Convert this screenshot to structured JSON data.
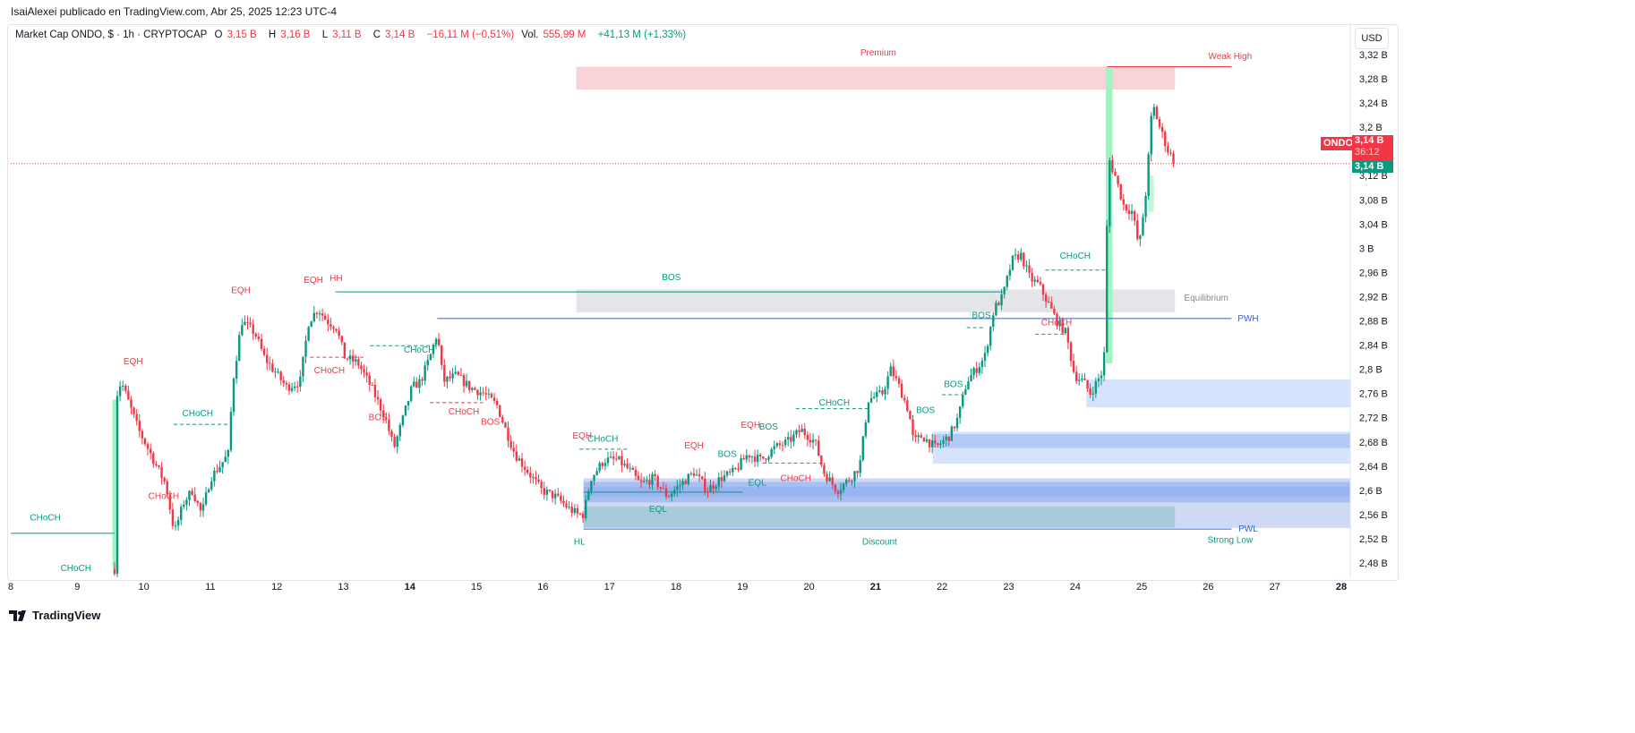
{
  "publisher_line": "IsaiAlexei publicado en TradingView.com, Abr 25, 2025 12:23 UTC-4",
  "legend": {
    "symbol": "Market Cap ONDO, $ · 1h · CRYPTOCAP",
    "o_label": "O",
    "o": "3,15 B",
    "h_label": "H",
    "h": "3,16 B",
    "l_label": "L",
    "l": "3,11 B",
    "c_label": "C",
    "c": "3,14 B",
    "change": "−16,11 M (−0,51%)",
    "vol_label": "Vol.",
    "vol": "555,99 M",
    "vol_change": "+41,13 M (+1,33%)"
  },
  "currency_button": "USD",
  "price_tags": {
    "symbol": "ONDO",
    "price": "3,14 B",
    "countdown": "36:12",
    "last": "3,14 B"
  },
  "footer_logo": "TradingView",
  "colors": {
    "up": "#089981",
    "down": "#f23645",
    "blue": "#2962ff"
  },
  "chart_data": {
    "type": "candlestick",
    "title": "Market Cap ONDO, $ · 1h · CRYPTOCAP",
    "xlim": [
      8,
      28
    ],
    "ylim": [
      2.46,
      3.34
    ],
    "x_ticks": [
      {
        "v": 8,
        "t": "8"
      },
      {
        "v": 9,
        "t": "9"
      },
      {
        "v": 10,
        "t": "10"
      },
      {
        "v": 11,
        "t": "11"
      },
      {
        "v": 12,
        "t": "12"
      },
      {
        "v": 13,
        "t": "13"
      },
      {
        "v": 14,
        "t": "14"
      },
      {
        "v": 15,
        "t": "15"
      },
      {
        "v": 16,
        "t": "16"
      },
      {
        "v": 17,
        "t": "17"
      },
      {
        "v": 18,
        "t": "18"
      },
      {
        "v": 19,
        "t": "19"
      },
      {
        "v": 20,
        "t": "20"
      },
      {
        "v": 21,
        "t": "21"
      },
      {
        "v": 22,
        "t": "22"
      },
      {
        "v": 23,
        "t": "23"
      },
      {
        "v": 24,
        "t": "24"
      },
      {
        "v": 25,
        "t": "25"
      },
      {
        "v": 26,
        "t": "26"
      },
      {
        "v": 27,
        "t": "27"
      },
      {
        "v": 28,
        "t": "28"
      }
    ],
    "y_ticks": [
      {
        "v": 3.32,
        "t": "3,32 B"
      },
      {
        "v": 3.28,
        "t": "3,28 B"
      },
      {
        "v": 3.24,
        "t": "3,24 B"
      },
      {
        "v": 3.2,
        "t": "3,2 B"
      },
      {
        "v": 3.12,
        "t": "3,12 B"
      },
      {
        "v": 3.08,
        "t": "3,08 B"
      },
      {
        "v": 3.04,
        "t": "3,04 B"
      },
      {
        "v": 3.0,
        "t": "3 B"
      },
      {
        "v": 2.96,
        "t": "2,96 B"
      },
      {
        "v": 2.92,
        "t": "2,92 B"
      },
      {
        "v": 2.88,
        "t": "2,88 B"
      },
      {
        "v": 2.84,
        "t": "2,84 B"
      },
      {
        "v": 2.8,
        "t": "2,8 B"
      },
      {
        "v": 2.76,
        "t": "2,76 B"
      },
      {
        "v": 2.72,
        "t": "2,72 B"
      },
      {
        "v": 2.68,
        "t": "2,68 B"
      },
      {
        "v": 2.64,
        "t": "2,64 B"
      },
      {
        "v": 2.6,
        "t": "2,6 B"
      },
      {
        "v": 2.56,
        "t": "2,56 B"
      },
      {
        "v": 2.52,
        "t": "2,52 B"
      },
      {
        "v": 2.48,
        "t": "2,48 B"
      }
    ],
    "price_path": [
      [
        9.56,
        2.47
      ],
      [
        9.57,
        2.75
      ],
      [
        9.66,
        2.78
      ],
      [
        9.79,
        2.74
      ],
      [
        9.92,
        2.7
      ],
      [
        10.06,
        2.67
      ],
      [
        10.19,
        2.64
      ],
      [
        10.33,
        2.61
      ],
      [
        10.46,
        2.53
      ],
      [
        10.6,
        2.58
      ],
      [
        10.73,
        2.6
      ],
      [
        10.87,
        2.56
      ],
      [
        11.0,
        2.62
      ],
      [
        11.14,
        2.64
      ],
      [
        11.27,
        2.66
      ],
      [
        11.34,
        2.78
      ],
      [
        11.47,
        2.88
      ],
      [
        11.67,
        2.86
      ],
      [
        11.81,
        2.82
      ],
      [
        11.94,
        2.8
      ],
      [
        12.15,
        2.77
      ],
      [
        12.35,
        2.78
      ],
      [
        12.48,
        2.88
      ],
      [
        12.62,
        2.9
      ],
      [
        12.75,
        2.88
      ],
      [
        12.89,
        2.87
      ],
      [
        13.02,
        2.82
      ],
      [
        13.22,
        2.81
      ],
      [
        13.42,
        2.77
      ],
      [
        13.63,
        2.72
      ],
      [
        13.76,
        2.67
      ],
      [
        13.9,
        2.72
      ],
      [
        14.03,
        2.77
      ],
      [
        14.16,
        2.78
      ],
      [
        14.3,
        2.82
      ],
      [
        14.41,
        2.86
      ],
      [
        14.5,
        2.78
      ],
      [
        14.7,
        2.79
      ],
      [
        14.9,
        2.77
      ],
      [
        15.11,
        2.76
      ],
      [
        15.31,
        2.74
      ],
      [
        15.44,
        2.7
      ],
      [
        15.58,
        2.66
      ],
      [
        15.78,
        2.63
      ],
      [
        15.98,
        2.6
      ],
      [
        16.18,
        2.59
      ],
      [
        16.39,
        2.57
      ],
      [
        16.52,
        2.56
      ],
      [
        16.61,
        2.56
      ],
      [
        16.72,
        2.62
      ],
      [
        16.92,
        2.65
      ],
      [
        17.13,
        2.65
      ],
      [
        17.33,
        2.63
      ],
      [
        17.46,
        2.61
      ],
      [
        17.66,
        2.62
      ],
      [
        17.87,
        2.59
      ],
      [
        18.07,
        2.61
      ],
      [
        18.27,
        2.63
      ],
      [
        18.47,
        2.6
      ],
      [
        18.67,
        2.62
      ],
      [
        18.87,
        2.63
      ],
      [
        19.08,
        2.66
      ],
      [
        19.28,
        2.65
      ],
      [
        19.48,
        2.67
      ],
      [
        19.68,
        2.68
      ],
      [
        19.88,
        2.7
      ],
      [
        20.09,
        2.68
      ],
      [
        20.22,
        2.63
      ],
      [
        20.42,
        2.6
      ],
      [
        20.62,
        2.62
      ],
      [
        20.76,
        2.64
      ],
      [
        20.89,
        2.75
      ],
      [
        21.1,
        2.76
      ],
      [
        21.23,
        2.8
      ],
      [
        21.36,
        2.77
      ],
      [
        21.5,
        2.73
      ],
      [
        21.57,
        2.68
      ],
      [
        21.7,
        2.69
      ],
      [
        21.9,
        2.67
      ],
      [
        22.11,
        2.69
      ],
      [
        22.24,
        2.72
      ],
      [
        22.37,
        2.78
      ],
      [
        22.51,
        2.8
      ],
      [
        22.64,
        2.82
      ],
      [
        22.78,
        2.9
      ],
      [
        22.91,
        2.92
      ],
      [
        23.05,
        2.98
      ],
      [
        23.18,
        2.99
      ],
      [
        23.32,
        2.95
      ],
      [
        23.45,
        2.94
      ],
      [
        23.59,
        2.91
      ],
      [
        23.72,
        2.88
      ],
      [
        23.86,
        2.86
      ],
      [
        23.99,
        2.79
      ],
      [
        24.12,
        2.78
      ],
      [
        24.23,
        2.76
      ],
      [
        24.33,
        2.78
      ],
      [
        24.43,
        2.8
      ],
      [
        24.5,
        3.15
      ],
      [
        24.6,
        3.12
      ],
      [
        24.73,
        3.07
      ],
      [
        24.86,
        3.06
      ],
      [
        24.96,
        3.0
      ],
      [
        25.07,
        3.1
      ],
      [
        25.16,
        3.24
      ],
      [
        25.27,
        3.2
      ],
      [
        25.4,
        3.16
      ],
      [
        25.51,
        3.14
      ]
    ],
    "last_price": 3.14,
    "zones": [
      {
        "name": "premium-zone",
        "x0": 16.5,
        "x1": 25.5,
        "y0": 3.262,
        "y1": 3.3,
        "color": "#f9d3d7"
      },
      {
        "name": "equilibrium-zone",
        "x0": 16.5,
        "x1": 25.5,
        "y0": 2.894,
        "y1": 2.932,
        "color": "#e3e5e8"
      },
      {
        "name": "discount-lower-zone",
        "x0": 16.61,
        "x1": 28.2,
        "y0": 2.538,
        "y1": 2.62,
        "color": "#cfd9f3"
      },
      {
        "name": "order-block-dark",
        "x0": 16.61,
        "x1": 28.2,
        "y0": 2.58,
        "y1": 2.614,
        "color": "#a9bff2"
      },
      {
        "name": "order-block-core",
        "x0": 16.61,
        "x1": 28.2,
        "y0": 2.59,
        "y1": 2.606,
        "color": "#98b4f1"
      },
      {
        "name": "discount-zone",
        "x0": 16.61,
        "x1": 25.5,
        "y0": 2.538,
        "y1": 2.573,
        "color": "#a7cbdb"
      },
      {
        "name": "demand-zone-1",
        "x0": 24.17,
        "x1": 28.2,
        "y0": 2.737,
        "y1": 2.783,
        "color": "#d6e3fd"
      },
      {
        "name": "demand-zone-2",
        "x0": 21.86,
        "x1": 28.2,
        "y0": 2.644,
        "y1": 2.697,
        "color": "#d6e3fd"
      },
      {
        "name": "demand-zone-2-core",
        "x0": 21.86,
        "x1": 28.2,
        "y0": 2.67,
        "y1": 2.693,
        "color": "#b4cbfa"
      },
      {
        "name": "impulse-highlight-1",
        "x0": 9.53,
        "x1": 9.62,
        "y0": 2.47,
        "y1": 2.75,
        "color": "#9df5c0"
      },
      {
        "name": "impulse-highlight-2",
        "x0": 24.46,
        "x1": 24.56,
        "y0": 2.81,
        "y1": 3.3,
        "color": "#9df5c0"
      },
      {
        "name": "impulse-highlight-3",
        "x0": 25.1,
        "x1": 25.18,
        "y0": 3.06,
        "y1": 3.12,
        "color": "#c0f8d6"
      }
    ],
    "lines": [
      {
        "name": "bos-line",
        "x0": 12.88,
        "x1": 22.91,
        "y": 2.928,
        "color": "#089981",
        "dash": false
      },
      {
        "name": "pwh-line",
        "x0": 14.41,
        "x1": 26.35,
        "y": 2.884,
        "color": "#2962ff",
        "dash": false
      },
      {
        "name": "pwl-line",
        "x0": 16.61,
        "x1": 26.35,
        "y": 2.536,
        "color": "#2962ff",
        "dash": false
      },
      {
        "name": "weak-high-line",
        "x0": 24.48,
        "x1": 26.35,
        "y": 3.3,
        "color": "#f23645",
        "dash": false
      },
      {
        "name": "choch-line-start",
        "x0": 8.0,
        "x1": 9.56,
        "y": 2.529,
        "color": "#089981",
        "dash": false
      },
      {
        "name": "choch-dash",
        "x0": 10.45,
        "x1": 11.3,
        "y": 2.709,
        "color": "#089981",
        "dash": true
      },
      {
        "name": "choch-dash",
        "x0": 13.4,
        "x1": 14.4,
        "y": 2.839,
        "color": "#089981",
        "dash": true
      },
      {
        "name": "choch-dash",
        "x0": 16.55,
        "x1": 17.3,
        "y": 2.668,
        "color": "#089981",
        "dash": true
      },
      {
        "name": "choch-dash",
        "x0": 19.8,
        "x1": 20.88,
        "y": 2.735,
        "color": "#089981",
        "dash": true
      },
      {
        "name": "choch-dash",
        "x0": 23.55,
        "x1": 24.45,
        "y": 2.964,
        "color": "#089981",
        "dash": true
      },
      {
        "name": "bos-dash",
        "x0": 22.0,
        "x1": 22.3,
        "y": 2.758,
        "color": "#089981",
        "dash": true
      },
      {
        "name": "bos-dash",
        "x0": 22.37,
        "x1": 22.64,
        "y": 2.869,
        "color": "#089981",
        "dash": true
      },
      {
        "name": "choch-dash-red",
        "x0": 12.5,
        "x1": 13.3,
        "y": 2.82,
        "color": "#f23645",
        "dash": true
      },
      {
        "name": "choch-dash-red",
        "x0": 14.3,
        "x1": 15.1,
        "y": 2.745,
        "color": "#f23645",
        "dash": true
      },
      {
        "name": "choch-dash-red",
        "x0": 19.3,
        "x1": 20.25,
        "y": 2.645,
        "color": "#f23645",
        "dash": true
      },
      {
        "name": "choch-dash-red",
        "x0": 23.4,
        "x1": 23.85,
        "y": 2.858,
        "color": "#f23645",
        "dash": true
      },
      {
        "name": "eql-line",
        "x0": 16.61,
        "x1": 19.0,
        "y": 2.597,
        "color": "#089981",
        "dash": false
      },
      {
        "name": "current-price-line",
        "x0": 8.0,
        "x1": 28.2,
        "y": 3.14,
        "color": "#f23645",
        "dash": "dot"
      }
    ],
    "annotations": [
      {
        "t": "EQH",
        "x": 9.84,
        "y": 2.813,
        "c": "#f23645",
        "big": true
      },
      {
        "t": "CHoCH",
        "x": 8.52,
        "y": 2.555,
        "c": "#089981"
      },
      {
        "t": "CHoCH",
        "x": 8.98,
        "y": 2.471,
        "c": "#089981"
      },
      {
        "t": "CHoCH",
        "x": 10.81,
        "y": 2.727,
        "c": "#089981"
      },
      {
        "t": "CHoCH",
        "x": 10.3,
        "y": 2.59,
        "c": "#f23645"
      },
      {
        "t": "EQH",
        "x": 11.46,
        "y": 2.93,
        "c": "#f23645",
        "big": true
      },
      {
        "t": "EQH",
        "x": 12.55,
        "y": 2.947,
        "c": "#f23645",
        "big": true
      },
      {
        "t": "HH",
        "x": 12.89,
        "y": 2.95,
        "c": "#f23645"
      },
      {
        "t": "CHoCH",
        "x": 12.79,
        "y": 2.798,
        "c": "#f23645"
      },
      {
        "t": "BOS",
        "x": 13.52,
        "y": 2.72,
        "c": "#f23645"
      },
      {
        "t": "CHoCH",
        "x": 14.14,
        "y": 2.832,
        "c": "#089981"
      },
      {
        "t": "CHoCH",
        "x": 14.81,
        "y": 2.73,
        "c": "#f23645"
      },
      {
        "t": "BOS",
        "x": 15.21,
        "y": 2.713,
        "c": "#f23645"
      },
      {
        "t": "BOS",
        "x": 17.93,
        "y": 2.952,
        "c": "#089981"
      },
      {
        "t": "EQH",
        "x": 16.59,
        "y": 2.69,
        "c": "#f23645",
        "big": true
      },
      {
        "t": "CHoCH",
        "x": 16.9,
        "y": 2.685,
        "c": "#089981"
      },
      {
        "t": "HL",
        "x": 16.55,
        "y": 2.515,
        "c": "#089981"
      },
      {
        "t": "EQL",
        "x": 17.73,
        "y": 2.569,
        "c": "#089981",
        "big": true
      },
      {
        "t": "EQH",
        "x": 18.27,
        "y": 2.674,
        "c": "#f23645",
        "big": true
      },
      {
        "t": "BOS",
        "x": 18.77,
        "y": 2.66,
        "c": "#089981"
      },
      {
        "t": "EQL",
        "x": 19.22,
        "y": 2.612,
        "c": "#089981",
        "big": true
      },
      {
        "t": "EQH",
        "x": 19.12,
        "y": 2.708,
        "c": "#f23645",
        "big": true
      },
      {
        "t": "BOS",
        "x": 19.39,
        "y": 2.705,
        "c": "#089981"
      },
      {
        "t": "CHoCH",
        "x": 19.8,
        "y": 2.62,
        "c": "#f23645"
      },
      {
        "t": "CHoCH",
        "x": 20.38,
        "y": 2.745,
        "c": "#089981"
      },
      {
        "t": "Discount",
        "x": 21.06,
        "y": 2.515,
        "c": "#089981"
      },
      {
        "t": "BOS",
        "x": 21.75,
        "y": 2.732,
        "c": "#089981"
      },
      {
        "t": "BOS",
        "x": 22.17,
        "y": 2.775,
        "c": "#089981"
      },
      {
        "t": "BOS",
        "x": 22.59,
        "y": 2.889,
        "c": "#089981"
      },
      {
        "t": "CHoCH",
        "x": 24.0,
        "y": 2.987,
        "c": "#089981"
      },
      {
        "t": "CHoCH",
        "x": 23.72,
        "y": 2.877,
        "c": "#f23645"
      },
      {
        "t": "Premium",
        "x": 21.04,
        "y": 3.323,
        "c": "#f23645"
      },
      {
        "t": "Weak High",
        "x": 26.33,
        "y": 3.317,
        "c": "#f23645",
        "small": true
      },
      {
        "t": "Equilibrium",
        "x": 25.97,
        "y": 2.918,
        "c": "#868993",
        "big": true
      },
      {
        "t": "PWH",
        "x": 26.6,
        "y": 2.884,
        "c": "#2962ff"
      },
      {
        "t": "PWL",
        "x": 26.6,
        "y": 2.536,
        "c": "#2962ff"
      },
      {
        "t": "Strong Low",
        "x": 26.33,
        "y": 2.518,
        "c": "#089981",
        "small": true
      }
    ]
  }
}
